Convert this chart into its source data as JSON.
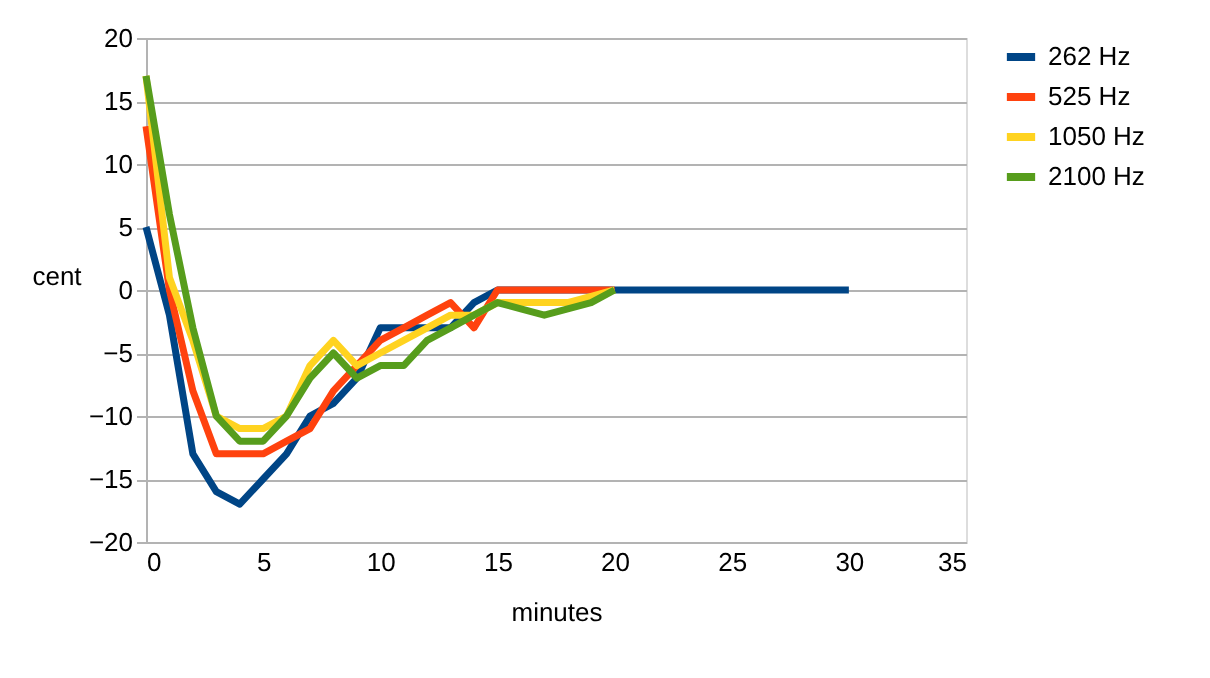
{
  "chart_data": {
    "type": "line",
    "xlabel": "minutes",
    "ylabel": "cent",
    "xlim": [
      0,
      35
    ],
    "xticks": [
      0,
      5,
      10,
      15,
      20,
      25,
      30,
      35
    ],
    "ylim": [
      -20,
      20
    ],
    "yticks": [
      -20,
      -15,
      -10,
      -5,
      0,
      5,
      10,
      15,
      20
    ],
    "grid": "y",
    "legend": "right",
    "marker": "none",
    "line_style": "solid",
    "series": [
      {
        "name": "262 Hz",
        "color": "#004586",
        "x": [
          0,
          1,
          2,
          3,
          4,
          5,
          6,
          7,
          8,
          9,
          10,
          11,
          12,
          13,
          14,
          15,
          16,
          17,
          18,
          19,
          20,
          21,
          22,
          23,
          24,
          25,
          26,
          27,
          28,
          29,
          30
        ],
        "values": [
          5,
          -2,
          -13,
          -16,
          -17,
          -15,
          -13,
          -10,
          -9,
          -7,
          -3,
          -3,
          -3,
          -3,
          -1,
          0,
          0,
          0,
          0,
          0,
          0,
          0,
          0,
          0,
          0,
          0,
          0,
          0,
          0,
          0,
          0
        ]
      },
      {
        "name": "525 Hz",
        "color": "#ff420e",
        "x": [
          0,
          1,
          2,
          3,
          4,
          5,
          6,
          7,
          8,
          9,
          10,
          11,
          12,
          13,
          14,
          15,
          16,
          17,
          18,
          19,
          20
        ],
        "values": [
          13,
          0,
          -8,
          -13,
          -13,
          -13,
          -12,
          -11,
          -8,
          -6,
          -4,
          -3,
          -2,
          -1,
          -3,
          0,
          0,
          0,
          0,
          0,
          0
        ]
      },
      {
        "name": "1050 Hz",
        "color": "#ffd320",
        "x": [
          0,
          1,
          2,
          3,
          4,
          5,
          6,
          7,
          8,
          9,
          10,
          11,
          12,
          13,
          14,
          15,
          16,
          17,
          18,
          19,
          20
        ],
        "values": [
          17,
          1,
          -4,
          -10,
          -11,
          -11,
          -10,
          -6,
          -4,
          -6,
          -5,
          -4,
          -3,
          -2,
          -2,
          -1,
          -1,
          -1,
          -1,
          -0.5,
          0
        ]
      },
      {
        "name": "2100 Hz",
        "color": "#579d1c",
        "x": [
          0,
          1,
          2,
          3,
          4,
          5,
          6,
          7,
          8,
          9,
          10,
          11,
          12,
          13,
          14,
          15,
          16,
          17,
          18,
          19,
          20
        ],
        "values": [
          17,
          6,
          -3,
          -10,
          -12,
          -12,
          -10,
          -7,
          -5,
          -7,
          -6,
          -6,
          -4,
          -3,
          -2,
          -1,
          -1.5,
          -2,
          -1.5,
          -1,
          0
        ]
      }
    ]
  }
}
